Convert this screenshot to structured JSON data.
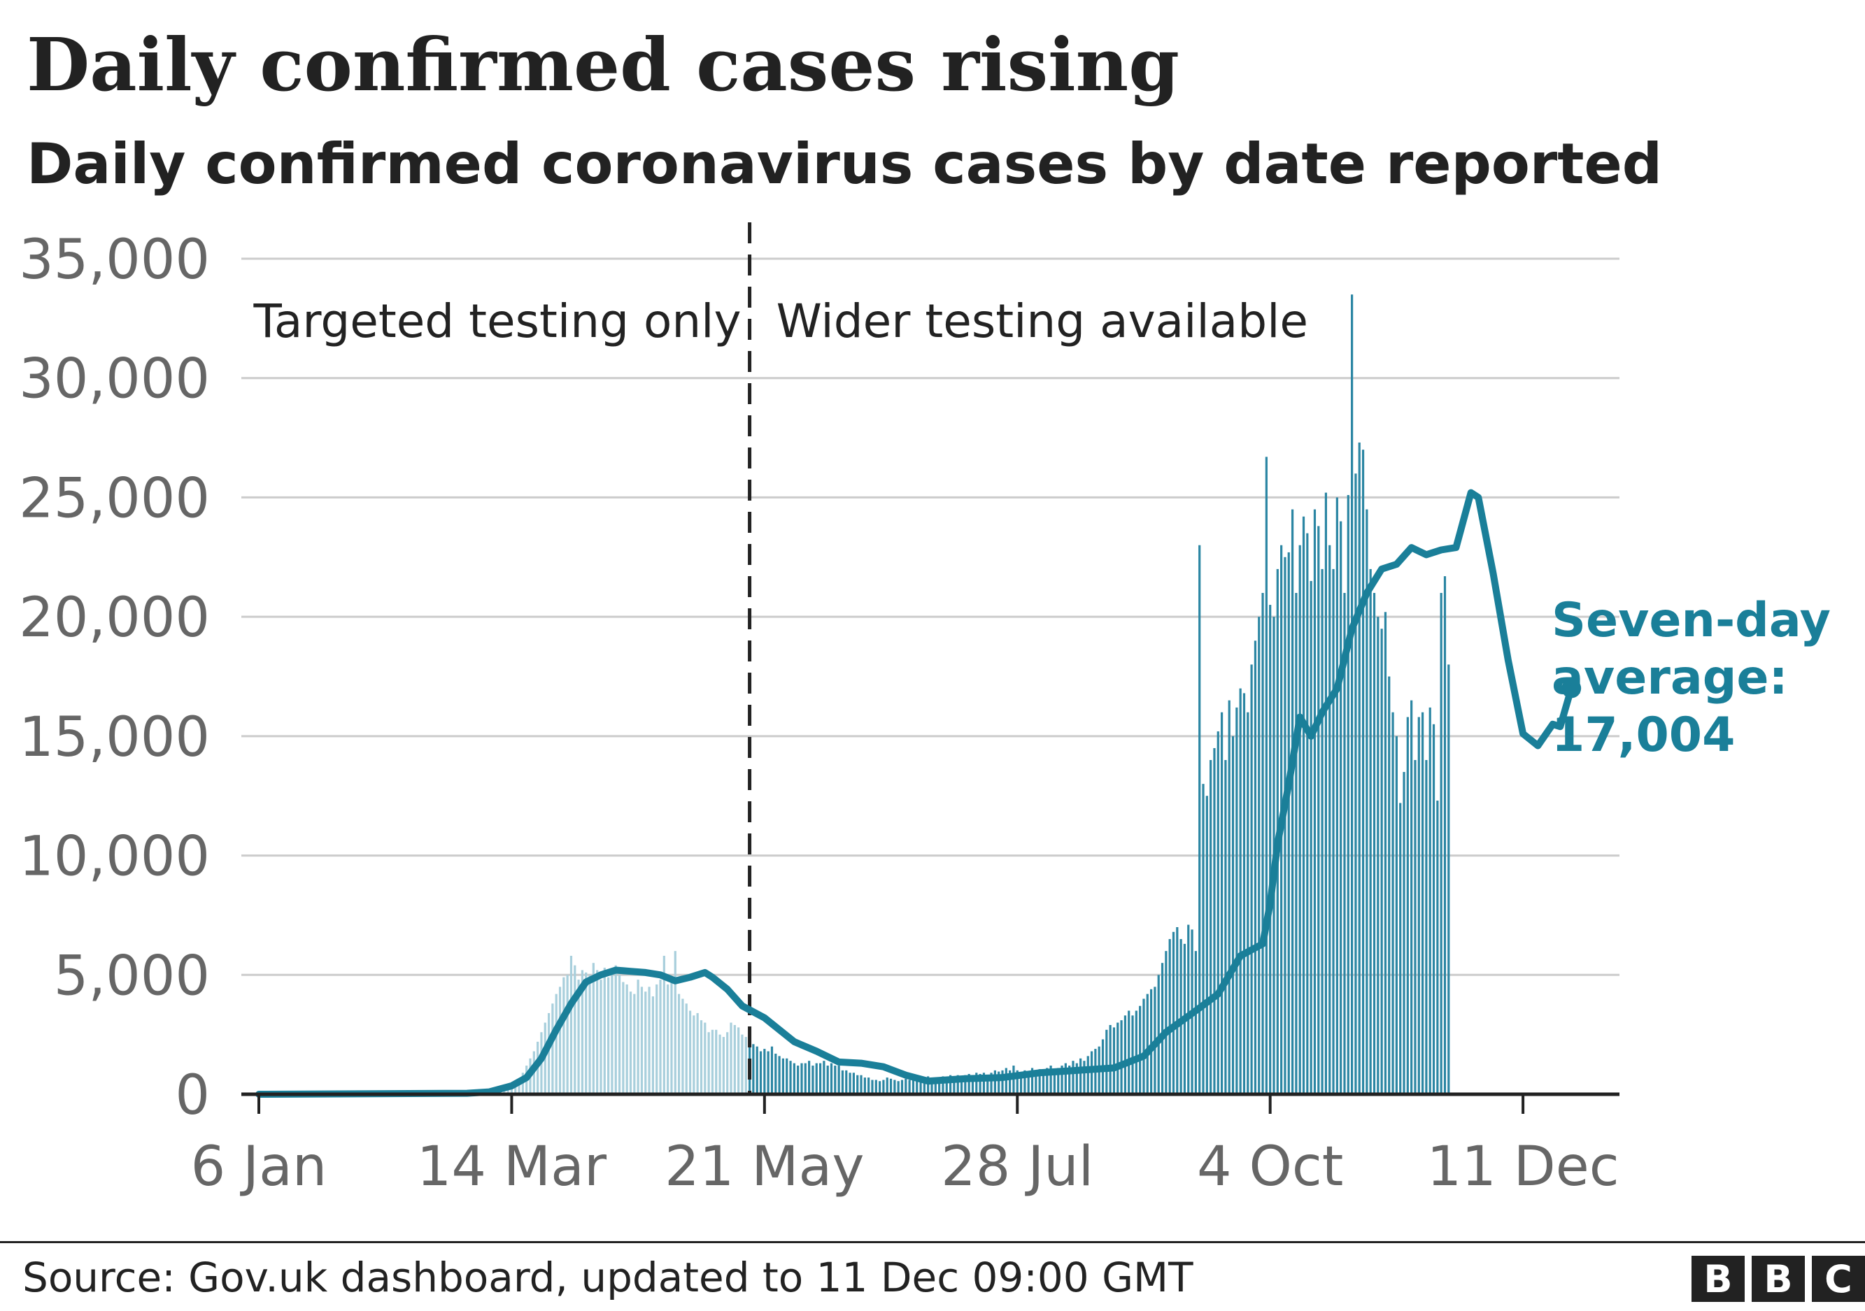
{
  "header": {
    "title": "Daily confirmed cases rising",
    "subtitle": "Daily confirmed coronavirus cases by date reported"
  },
  "footer": {
    "source": "Source: Gov.uk dashboard, updated to 11 Dec 09:00 GMT",
    "logo_letters": [
      "B",
      "B",
      "C"
    ]
  },
  "colors": {
    "average_line": "#1a7f99",
    "bars_early": "#a8cfdc",
    "bars_late": "#2b86a3",
    "grid": "#cccccc",
    "axis": "#222222",
    "text": "#222222",
    "tick_text": "#666666"
  },
  "chart_data": {
    "type": "bar",
    "title": "Daily confirmed cases rising",
    "subtitle": "Daily confirmed coronavirus cases by date reported",
    "xlabel": "",
    "ylabel": "",
    "x_range_days": [
      0,
      341
    ],
    "x_start_date": "6 Jan",
    "x_ticks": [
      {
        "day": 0,
        "label": "6 Jan"
      },
      {
        "day": 68,
        "label": "14 Mar"
      },
      {
        "day": 136,
        "label": "21 May"
      },
      {
        "day": 204,
        "label": "28 Jul"
      },
      {
        "day": 272,
        "label": "4 Oct"
      },
      {
        "day": 340,
        "label": "11 Dec"
      }
    ],
    "ylim": [
      0,
      35000
    ],
    "y_ticks": [
      {
        "value": 0,
        "label": "0"
      },
      {
        "value": 5000,
        "label": "5,000"
      },
      {
        "value": 10000,
        "label": "10,000"
      },
      {
        "value": 15000,
        "label": "15,000"
      },
      {
        "value": 20000,
        "label": "20,000"
      },
      {
        "value": 25000,
        "label": "25,000"
      },
      {
        "value": 30000,
        "label": "30,000"
      },
      {
        "value": 35000,
        "label": "35,000"
      }
    ],
    "grid": true,
    "divider": {
      "day": 132,
      "left_label": "Targeted testing only",
      "right_label": "Wider testing available"
    },
    "series": [
      {
        "name": "Daily confirmed cases",
        "type": "bar",
        "start_day": 56,
        "values": [
          20,
          30,
          40,
          50,
          60,
          80,
          100,
          120,
          150,
          200,
          250,
          300,
          400,
          500,
          650,
          900,
          1200,
          1500,
          1800,
          2200,
          2600,
          3000,
          3400,
          3800,
          4200,
          4500,
          4900,
          5000,
          5800,
          5400,
          4800,
          5200,
          5100,
          5000,
          5500,
          5200,
          4800,
          5300,
          4900,
          5100,
          5400,
          5000,
          4700,
          4600,
          4300,
          4200,
          4800,
          4500,
          4300,
          4500,
          4100,
          4600,
          4800,
          5800,
          4600,
          4700,
          6000,
          4200,
          4000,
          3800,
          3500,
          3300,
          3400,
          3100,
          3000,
          2600,
          2700,
          2700,
          2500,
          2400,
          2600,
          3000,
          2900,
          2800,
          2500,
          2400,
          2200,
          2100,
          2000,
          1800,
          1900,
          1800,
          2000,
          1700,
          1600,
          1500,
          1500,
          1400,
          1300,
          1200,
          1300,
          1300,
          1400,
          1200,
          1300,
          1300,
          1400,
          1200,
          1300,
          1200,
          1200,
          1000,
          1000,
          900,
          900,
          800,
          800,
          700,
          700,
          600,
          600,
          550,
          600,
          700,
          650,
          600,
          550,
          600,
          650,
          600,
          700,
          650,
          600,
          700,
          750,
          700,
          650,
          700,
          750,
          700,
          800,
          750,
          800,
          700,
          800,
          850,
          800,
          900,
          850,
          900,
          800,
          900,
          1000,
          950,
          1000,
          1100,
          1000,
          1200,
          1000,
          900,
          1000,
          950,
          1100,
          1000,
          1050,
          1000,
          1100,
          1200,
          1000,
          1100,
          1200,
          1300,
          1200,
          1400,
          1300,
          1500,
          1400,
          1600,
          1800,
          1900,
          2000,
          2300,
          2700,
          2900,
          2800,
          3000,
          3100,
          3300,
          3500,
          3300,
          3500,
          3700,
          4000,
          4200,
          4400,
          4500,
          5000,
          5500,
          6000,
          6500,
          6800,
          7000,
          6500,
          6300,
          7100,
          6900,
          6000,
          23000,
          13000,
          12500,
          14000,
          14500,
          15200,
          16000,
          14000,
          16500,
          15000,
          16200,
          17000,
          16800,
          16000,
          18000,
          19000,
          20000,
          21000,
          26700,
          20500,
          20000,
          22000,
          23000,
          22500,
          22700,
          24500,
          21000,
          23000,
          24200,
          23500,
          21500,
          24500,
          23800,
          22000,
          25200,
          23000,
          22000,
          25000,
          24000,
          21000,
          25100,
          33500,
          26000,
          27300,
          27000,
          24500,
          22000,
          21000,
          20000,
          19500,
          20200,
          17500,
          16000,
          15000,
          12200,
          13500,
          15800,
          16500,
          14000,
          15800,
          16000,
          14000,
          16200,
          15500,
          12300,
          21000,
          21700,
          18000
        ]
      },
      {
        "name": "Seven-day average",
        "type": "line",
        "points": [
          {
            "day": 0,
            "value": 0
          },
          {
            "day": 56,
            "value": 40
          },
          {
            "day": 62,
            "value": 100
          },
          {
            "day": 68,
            "value": 350
          },
          {
            "day": 72,
            "value": 700
          },
          {
            "day": 76,
            "value": 1500
          },
          {
            "day": 80,
            "value": 2700
          },
          {
            "day": 84,
            "value": 3800
          },
          {
            "day": 88,
            "value": 4700
          },
          {
            "day": 92,
            "value": 5000
          },
          {
            "day": 96,
            "value": 5200
          },
          {
            "day": 100,
            "value": 5150
          },
          {
            "day": 104,
            "value": 5100
          },
          {
            "day": 108,
            "value": 5000
          },
          {
            "day": 112,
            "value": 4750
          },
          {
            "day": 116,
            "value": 4900
          },
          {
            "day": 120,
            "value": 5100
          },
          {
            "day": 122,
            "value": 4900
          },
          {
            "day": 126,
            "value": 4400
          },
          {
            "day": 130,
            "value": 3700
          },
          {
            "day": 136,
            "value": 3200
          },
          {
            "day": 144,
            "value": 2200
          },
          {
            "day": 150,
            "value": 1800
          },
          {
            "day": 156,
            "value": 1350
          },
          {
            "day": 162,
            "value": 1300
          },
          {
            "day": 168,
            "value": 1150
          },
          {
            "day": 174,
            "value": 800
          },
          {
            "day": 180,
            "value": 550
          },
          {
            "day": 190,
            "value": 650
          },
          {
            "day": 200,
            "value": 700
          },
          {
            "day": 210,
            "value": 900
          },
          {
            "day": 220,
            "value": 1000
          },
          {
            "day": 230,
            "value": 1100
          },
          {
            "day": 238,
            "value": 1600
          },
          {
            "day": 244,
            "value": 2600
          },
          {
            "day": 252,
            "value": 3500
          },
          {
            "day": 258,
            "value": 4200
          },
          {
            "day": 264,
            "value": 5800
          },
          {
            "day": 270,
            "value": 6300
          },
          {
            "day": 272,
            "value": 8000
          },
          {
            "day": 274,
            "value": 10500
          },
          {
            "day": 277,
            "value": 13000
          },
          {
            "day": 280,
            "value": 15800
          },
          {
            "day": 283,
            "value": 15000
          },
          {
            "day": 286,
            "value": 16000
          },
          {
            "day": 290,
            "value": 17000
          },
          {
            "day": 294,
            "value": 19500
          },
          {
            "day": 298,
            "value": 21000
          },
          {
            "day": 302,
            "value": 22000
          },
          {
            "day": 306,
            "value": 22200
          },
          {
            "day": 310,
            "value": 22900
          },
          {
            "day": 314,
            "value": 22600
          },
          {
            "day": 318,
            "value": 22800
          },
          {
            "day": 322,
            "value": 22900
          },
          {
            "day": 326,
            "value": 25200
          },
          {
            "day": 328,
            "value": 25000
          },
          {
            "day": 332,
            "value": 21800
          },
          {
            "day": 336,
            "value": 18200
          },
          {
            "day": 340,
            "value": 15100
          },
          {
            "day": 344,
            "value": 14600
          },
          {
            "day": 348,
            "value": 15500
          },
          {
            "day": 350,
            "value": 15400
          },
          {
            "day": 353,
            "value": 17004
          }
        ],
        "end_label": [
          "Seven-day",
          "average:",
          "17,004"
        ]
      }
    ]
  }
}
